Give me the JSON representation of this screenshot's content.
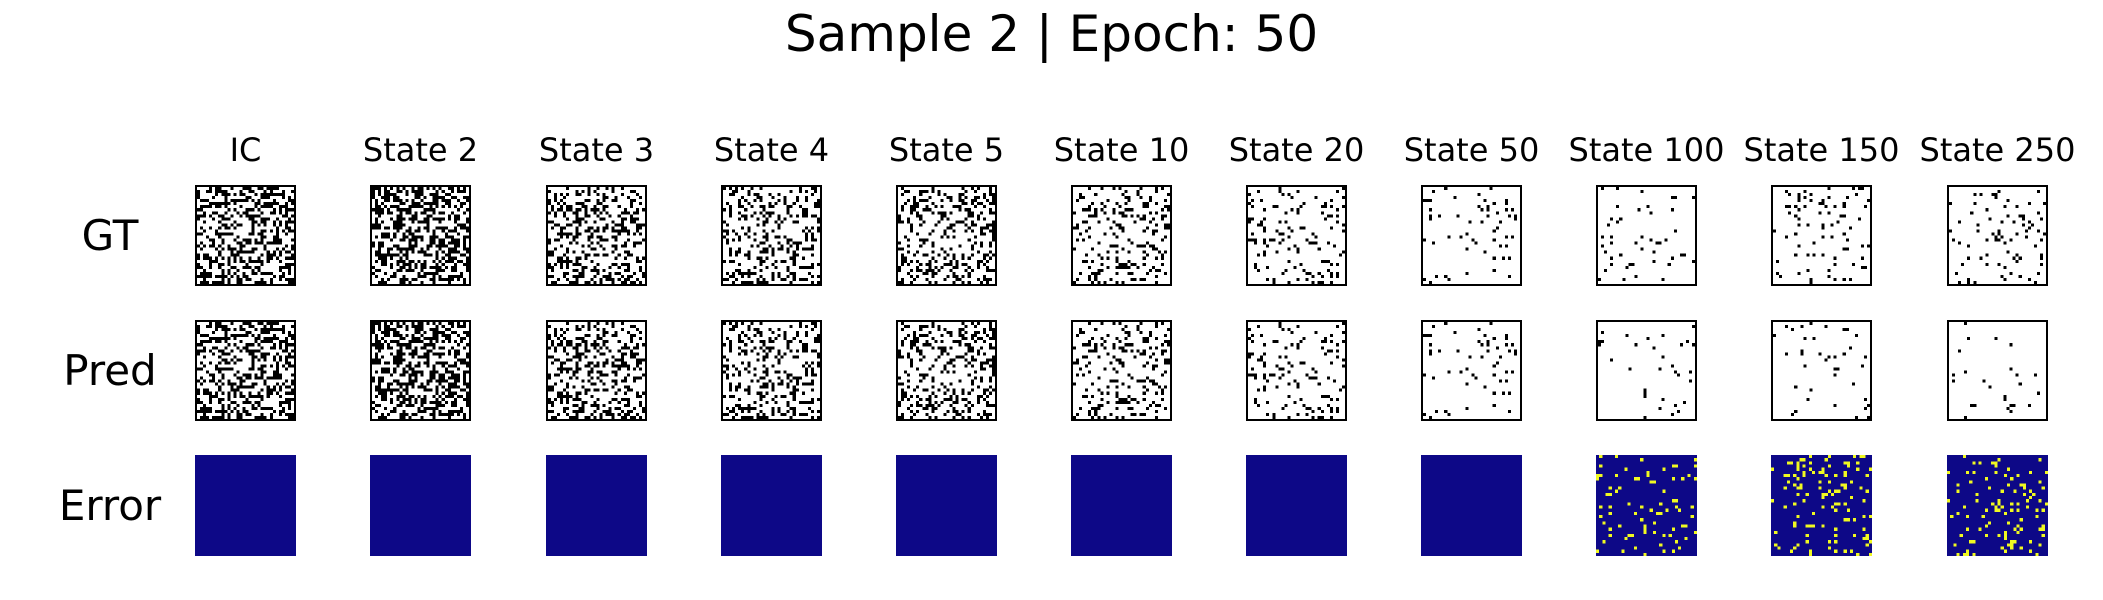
{
  "title": "Sample 2 | Epoch: 50",
  "columns": [
    "IC",
    "State 2",
    "State 3",
    "State 4",
    "State 5",
    "State 10",
    "State 20",
    "State 50",
    "State 100",
    "State 150",
    "State 250"
  ],
  "rows": [
    {
      "label": "GT",
      "kind": "state"
    },
    {
      "label": "Pred",
      "kind": "state"
    },
    {
      "label": "Error",
      "kind": "error"
    }
  ],
  "colors": {
    "alive": "#000000",
    "dead": "#ffffff",
    "error_background": "#0d0887",
    "error_highlight": "#f0f921"
  },
  "chart_data": {
    "type": "heatmap",
    "title": "Sample 2 | Epoch: 50",
    "grid_size": 32,
    "rows": [
      "GT",
      "Pred",
      "Error"
    ],
    "columns": [
      "IC",
      "State 2",
      "State 3",
      "State 4",
      "State 5",
      "State 10",
      "State 20",
      "State 50",
      "State 100",
      "State 150",
      "State 250"
    ],
    "alive_density": {
      "GT": [
        0.42,
        0.45,
        0.34,
        0.3,
        0.27,
        0.18,
        0.11,
        0.06,
        0.05,
        0.09,
        0.08
      ],
      "Pred": [
        0.42,
        0.45,
        0.34,
        0.3,
        0.27,
        0.18,
        0.11,
        0.06,
        0.04,
        0.04,
        0.03
      ]
    },
    "error_fraction": [
      0,
      0,
      0,
      0,
      0,
      0,
      0,
      0,
      0.07,
      0.11,
      0.12
    ]
  }
}
